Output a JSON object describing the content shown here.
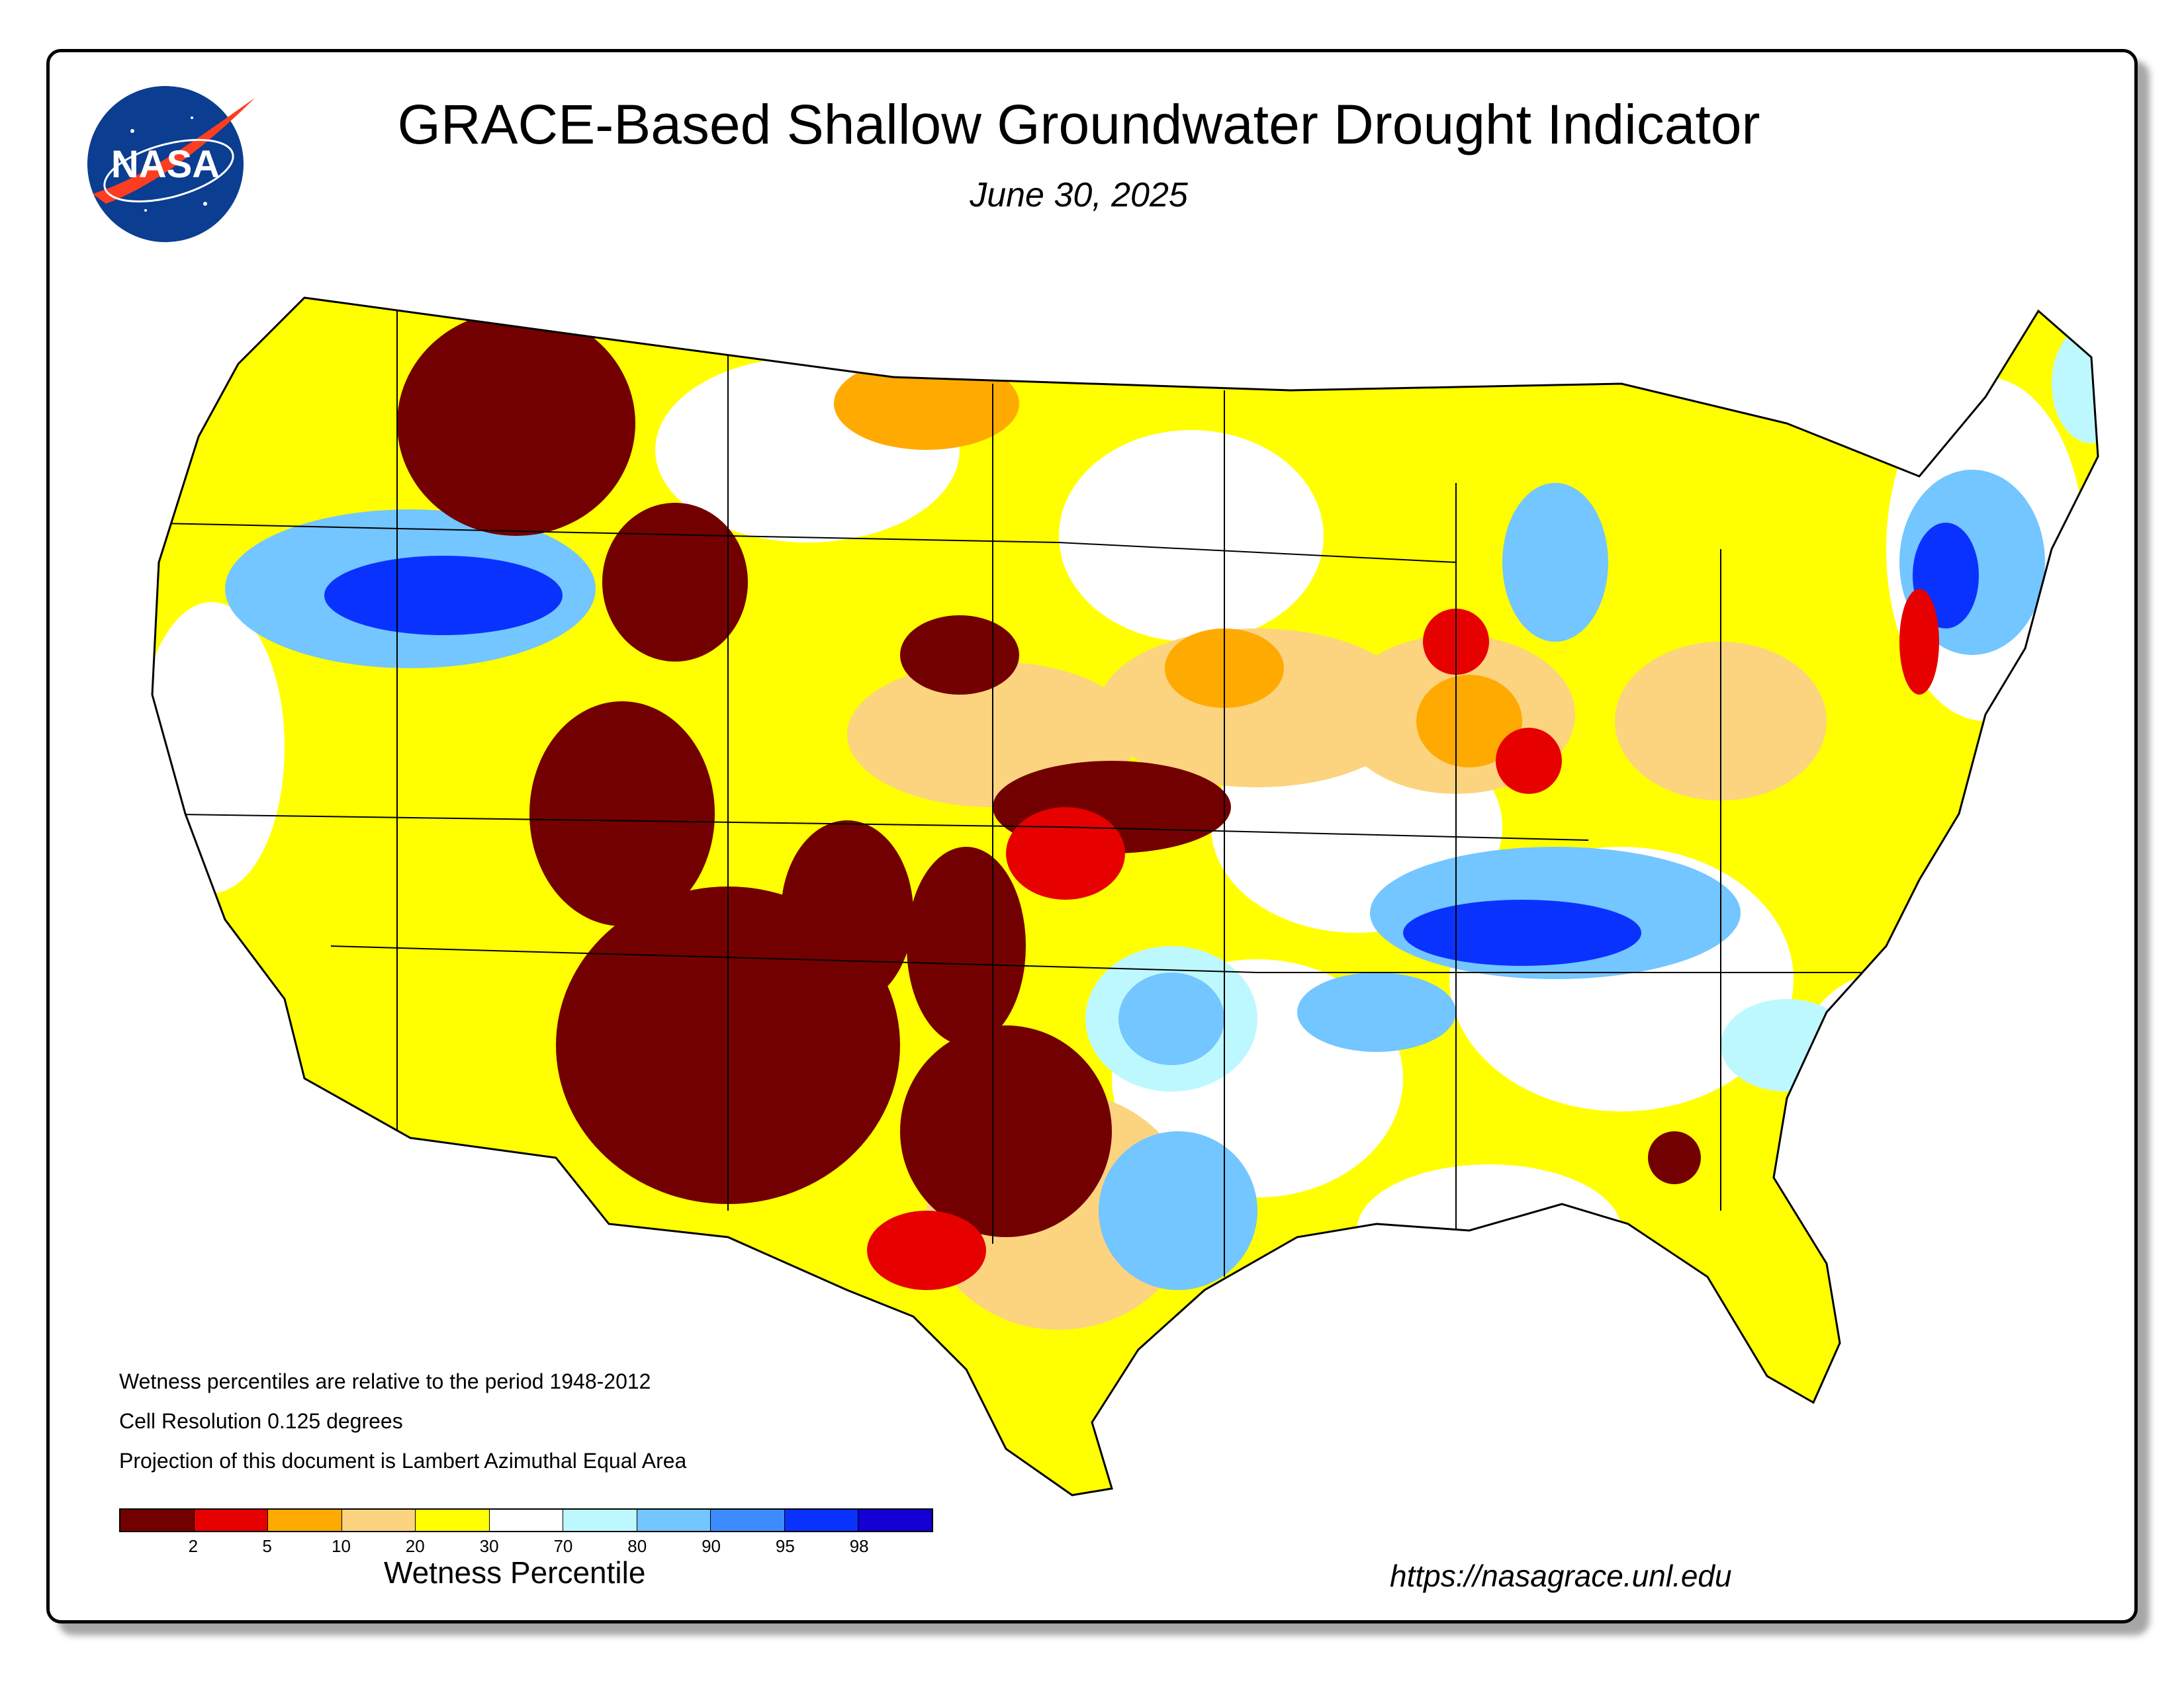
{
  "title": "GRACE-Based Shallow Groundwater Drought Indicator",
  "date": "June 30, 2025",
  "logo_text": "NASA",
  "notes": [
    "Wetness percentiles are relative to the period 1948-2012",
    "Cell Resolution 0.125 degrees",
    "Projection of this document is Lambert Azimuthal Equal Area"
  ],
  "legend": {
    "title": "Wetness Percentile",
    "colors": [
      "#730000",
      "#e60000",
      "#ffaa00",
      "#fcd37f",
      "#ffff00",
      "#ffffff",
      "#bef8ff",
      "#73c6ff",
      "#3c8cff",
      "#0a32ff",
      "#1400d2"
    ],
    "tick_labels": [
      "2",
      "5",
      "10",
      "20",
      "30",
      "70",
      "80",
      "90",
      "95",
      "98"
    ]
  },
  "url": "https://nasagrace.unl.edu",
  "colors": {
    "border": "#000000",
    "nasa_blue": "#0b3d91",
    "nasa_red": "#fc3d21"
  }
}
